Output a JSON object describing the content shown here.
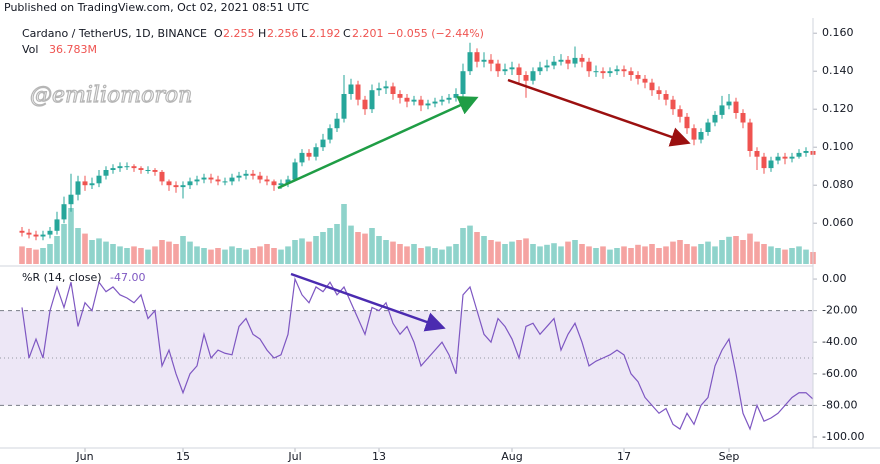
{
  "header": "Published on TradingView.com, Oct 02, 2021 08:51 UTC",
  "watermark": "@emiliomoron",
  "chart_data": [
    {
      "type": "candlestick",
      "legend": {
        "symbol": "Cardano / TetherUS, 1D, BINANCE",
        "o_label": "O",
        "o": "2.255",
        "h_label": "H",
        "h": "2.256",
        "l_label": "L",
        "l": "2.192",
        "c_label": "C",
        "c": "2.201",
        "change": "−0.055 (−2.44%)",
        "vol_label": "Vol",
        "vol": "36.783M"
      },
      "up_color": "#26a69a",
      "down_color": "#ef5350",
      "volume_up_color": "#8fd3cb",
      "volume_down_color": "#f5a3a1",
      "ylim": [
        0.038,
        0.168
      ],
      "yticks": [
        {
          "value": 0.16,
          "label": "0.160"
        },
        {
          "value": 0.14,
          "label": "0.140"
        },
        {
          "value": 0.12,
          "label": "0.120"
        },
        {
          "value": 0.1,
          "label": "0.100"
        },
        {
          "value": 0.08,
          "label": "0.080"
        },
        {
          "value": 0.06,
          "label": "0.060"
        }
      ],
      "xticks": [
        {
          "value": 9,
          "label": "Jun"
        },
        {
          "value": 23,
          "label": "15"
        },
        {
          "value": 39,
          "label": "Jul"
        },
        {
          "value": 51,
          "label": "13"
        },
        {
          "value": 70,
          "label": "Aug"
        },
        {
          "value": 86,
          "label": "17"
        },
        {
          "value": 101,
          "label": "Sep"
        }
      ],
      "open": [
        0.056,
        0.055,
        0.054,
        0.053,
        0.054,
        0.056,
        0.062,
        0.07,
        0.075,
        0.082,
        0.08,
        0.081,
        0.085,
        0.088,
        0.089,
        0.09,
        0.09,
        0.089,
        0.088,
        0.088,
        0.087,
        0.082,
        0.08,
        0.079,
        0.08,
        0.082,
        0.083,
        0.084,
        0.083,
        0.082,
        0.082,
        0.084,
        0.085,
        0.086,
        0.085,
        0.083,
        0.082,
        0.08,
        0.081,
        0.083,
        0.092,
        0.097,
        0.095,
        0.1,
        0.104,
        0.11,
        0.115,
        0.128,
        0.133,
        0.125,
        0.12,
        0.13,
        0.131,
        0.132,
        0.128,
        0.126,
        0.124,
        0.125,
        0.122,
        0.123,
        0.124,
        0.125,
        0.126,
        0.128,
        0.14,
        0.15,
        0.145,
        0.146,
        0.144,
        0.14,
        0.141,
        0.142,
        0.138,
        0.135,
        0.14,
        0.142,
        0.143,
        0.145,
        0.146,
        0.144,
        0.147,
        0.145,
        0.14,
        0.14,
        0.139,
        0.14,
        0.141,
        0.14,
        0.138,
        0.136,
        0.134,
        0.13,
        0.128,
        0.125,
        0.12,
        0.116,
        0.11,
        0.104,
        0.108,
        0.113,
        0.117,
        0.122,
        0.124,
        0.118,
        0.113,
        0.098,
        0.095,
        0.089,
        0.093,
        0.095,
        0.094,
        0.095,
        0.097,
        0.098
      ],
      "high": [
        0.058,
        0.057,
        0.056,
        0.056,
        0.058,
        0.066,
        0.074,
        0.086,
        0.085,
        0.085,
        0.084,
        0.088,
        0.09,
        0.091,
        0.092,
        0.092,
        0.091,
        0.09,
        0.09,
        0.089,
        0.088,
        0.083,
        0.082,
        0.082,
        0.084,
        0.085,
        0.086,
        0.086,
        0.085,
        0.084,
        0.086,
        0.087,
        0.088,
        0.088,
        0.087,
        0.085,
        0.083,
        0.083,
        0.085,
        0.094,
        0.099,
        0.099,
        0.102,
        0.107,
        0.112,
        0.118,
        0.138,
        0.136,
        0.135,
        0.127,
        0.133,
        0.134,
        0.135,
        0.134,
        0.13,
        0.128,
        0.127,
        0.127,
        0.125,
        0.126,
        0.127,
        0.128,
        0.131,
        0.144,
        0.155,
        0.152,
        0.15,
        0.149,
        0.146,
        0.144,
        0.145,
        0.144,
        0.14,
        0.142,
        0.145,
        0.146,
        0.148,
        0.149,
        0.148,
        0.153,
        0.149,
        0.147,
        0.143,
        0.142,
        0.142,
        0.143,
        0.143,
        0.142,
        0.14,
        0.138,
        0.136,
        0.132,
        0.13,
        0.127,
        0.122,
        0.118,
        0.112,
        0.11,
        0.115,
        0.119,
        0.127,
        0.128,
        0.126,
        0.12,
        0.115,
        0.1,
        0.097,
        0.095,
        0.097,
        0.097,
        0.097,
        0.099,
        0.1,
        0.099
      ],
      "low": [
        0.053,
        0.052,
        0.051,
        0.051,
        0.052,
        0.054,
        0.06,
        0.066,
        0.072,
        0.077,
        0.078,
        0.079,
        0.083,
        0.086,
        0.087,
        0.088,
        0.087,
        0.086,
        0.086,
        0.085,
        0.08,
        0.077,
        0.076,
        0.073,
        0.078,
        0.08,
        0.081,
        0.081,
        0.08,
        0.08,
        0.08,
        0.082,
        0.083,
        0.083,
        0.081,
        0.08,
        0.077,
        0.078,
        0.079,
        0.082,
        0.09,
        0.093,
        0.093,
        0.098,
        0.102,
        0.108,
        0.113,
        0.125,
        0.122,
        0.117,
        0.118,
        0.127,
        0.128,
        0.125,
        0.123,
        0.121,
        0.122,
        0.119,
        0.12,
        0.121,
        0.122,
        0.123,
        0.124,
        0.126,
        0.138,
        0.142,
        0.142,
        0.14,
        0.137,
        0.138,
        0.138,
        0.134,
        0.126,
        0.133,
        0.138,
        0.14,
        0.141,
        0.143,
        0.141,
        0.142,
        0.142,
        0.137,
        0.137,
        0.136,
        0.137,
        0.138,
        0.137,
        0.135,
        0.133,
        0.131,
        0.127,
        0.125,
        0.122,
        0.117,
        0.113,
        0.107,
        0.101,
        0.102,
        0.106,
        0.111,
        0.115,
        0.12,
        0.115,
        0.11,
        0.095,
        0.088,
        0.086,
        0.087,
        0.091,
        0.091,
        0.092,
        0.094,
        0.095,
        0.094
      ],
      "close": [
        0.055,
        0.054,
        0.053,
        0.054,
        0.056,
        0.062,
        0.07,
        0.075,
        0.082,
        0.08,
        0.081,
        0.085,
        0.088,
        0.089,
        0.09,
        0.09,
        0.089,
        0.088,
        0.088,
        0.087,
        0.082,
        0.08,
        0.079,
        0.08,
        0.082,
        0.083,
        0.084,
        0.083,
        0.082,
        0.082,
        0.084,
        0.085,
        0.086,
        0.085,
        0.083,
        0.082,
        0.08,
        0.081,
        0.083,
        0.092,
        0.097,
        0.095,
        0.1,
        0.104,
        0.11,
        0.115,
        0.128,
        0.133,
        0.125,
        0.12,
        0.13,
        0.131,
        0.132,
        0.128,
        0.126,
        0.124,
        0.125,
        0.122,
        0.123,
        0.124,
        0.125,
        0.126,
        0.128,
        0.14,
        0.15,
        0.145,
        0.146,
        0.144,
        0.14,
        0.141,
        0.142,
        0.138,
        0.135,
        0.14,
        0.142,
        0.143,
        0.145,
        0.146,
        0.144,
        0.147,
        0.145,
        0.14,
        0.14,
        0.139,
        0.14,
        0.141,
        0.14,
        0.138,
        0.136,
        0.134,
        0.13,
        0.128,
        0.125,
        0.12,
        0.116,
        0.11,
        0.104,
        0.108,
        0.113,
        0.117,
        0.122,
        0.124,
        0.118,
        0.113,
        0.098,
        0.095,
        0.089,
        0.093,
        0.095,
        0.094,
        0.095,
        0.097,
        0.098,
        0.096
      ],
      "volume": [
        22,
        20,
        18,
        20,
        25,
        35,
        50,
        70,
        45,
        38,
        30,
        32,
        28,
        25,
        22,
        20,
        22,
        20,
        18,
        22,
        30,
        28,
        25,
        35,
        28,
        22,
        20,
        18,
        20,
        18,
        22,
        20,
        18,
        20,
        22,
        25,
        20,
        18,
        22,
        30,
        32,
        28,
        35,
        40,
        45,
        50,
        75,
        48,
        40,
        38,
        45,
        35,
        30,
        28,
        25,
        22,
        25,
        20,
        22,
        20,
        18,
        22,
        25,
        45,
        48,
        40,
        35,
        30,
        28,
        25,
        28,
        30,
        32,
        25,
        22,
        24,
        26,
        22,
        28,
        30,
        25,
        22,
        20,
        22,
        18,
        20,
        22,
        20,
        24,
        22,
        25,
        20,
        22,
        28,
        30,
        25,
        22,
        25,
        28,
        22,
        30,
        34,
        35,
        30,
        38,
        28,
        25,
        22,
        20,
        18,
        20,
        22,
        18,
        15
      ]
    },
    {
      "type": "line",
      "name": "%R (14, close)",
      "last_value": {
        "value": -47,
        "label": "-47.00"
      },
      "color": "#7e57c2",
      "band_color": "#ede7f6",
      "band": [
        -20,
        -80
      ],
      "middle": -50,
      "ylim": [
        -107,
        7
      ],
      "yticks": [
        {
          "value": 0,
          "label": "0.00"
        },
        {
          "value": -20,
          "label": "-20.00"
        },
        {
          "value": -40,
          "label": "-40.00"
        },
        {
          "value": -60,
          "label": "-60.00"
        },
        {
          "value": -80,
          "label": "-80.00"
        },
        {
          "value": -100,
          "label": "-100.00"
        }
      ],
      "values": [
        -18,
        -50,
        -38,
        -50,
        -20,
        -5,
        -18,
        -2,
        -30,
        -15,
        -20,
        -2,
        -8,
        -5,
        -10,
        -12,
        -15,
        -10,
        -25,
        -20,
        -55,
        -45,
        -60,
        -72,
        -60,
        -55,
        -35,
        -50,
        -45,
        -47,
        -48,
        -30,
        -25,
        -35,
        -38,
        -45,
        -50,
        -48,
        -35,
        0,
        -10,
        -15,
        -5,
        -8,
        -2,
        -10,
        -5,
        -15,
        -25,
        -35,
        -18,
        -20,
        -15,
        -28,
        -35,
        -30,
        -40,
        -55,
        -50,
        -45,
        -40,
        -48,
        -60,
        -10,
        -5,
        -20,
        -35,
        -40,
        -25,
        -30,
        -38,
        -50,
        -30,
        -28,
        -35,
        -30,
        -25,
        -45,
        -35,
        -28,
        -40,
        -55,
        -52,
        -50,
        -48,
        -45,
        -48,
        -60,
        -65,
        -75,
        -80,
        -85,
        -82,
        -92,
        -95,
        -85,
        -92,
        -80,
        -75,
        -55,
        -45,
        -38,
        -60,
        -85,
        -95,
        -80,
        -90,
        -88,
        -85,
        -80,
        -75,
        -72,
        -72,
        -76
      ]
    }
  ]
}
